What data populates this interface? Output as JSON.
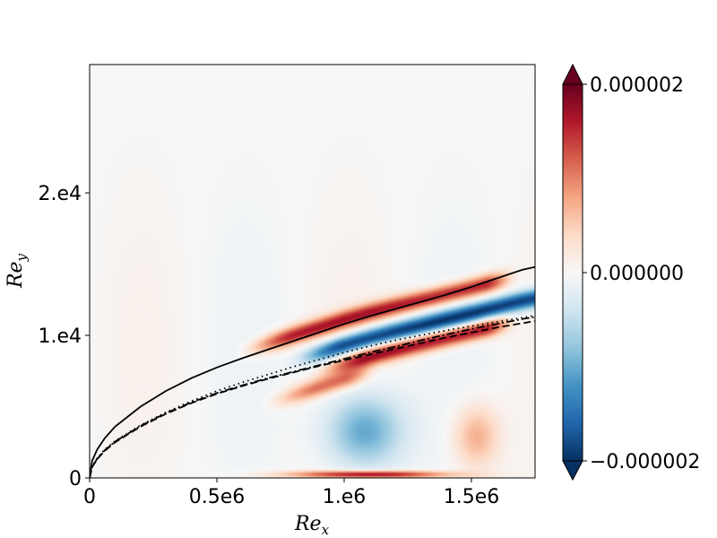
{
  "chart_data": {
    "type": "heatmap",
    "xlabel": "Re",
    "xlabel_sub": "x",
    "ylabel": "Re",
    "ylabel_sub": "y",
    "xlim": [
      0,
      1750000
    ],
    "ylim": [
      0,
      29000
    ],
    "x_ticks": [
      {
        "value": 0,
        "label": "0"
      },
      {
        "value": 500000,
        "label": "0.5e6"
      },
      {
        "value": 1000000,
        "label": "1.e6"
      },
      {
        "value": 1500000,
        "label": "1.5e6"
      }
    ],
    "y_ticks": [
      {
        "value": 0,
        "label": "0"
      },
      {
        "value": 10000,
        "label": "1.e4"
      },
      {
        "value": 20000,
        "label": "2.e4"
      }
    ],
    "colorbar": {
      "min": -2e-06,
      "max": 2e-06,
      "colormap": "RdBu_r",
      "colors": [
        "#053061",
        "#2166ac",
        "#4393c3",
        "#92c5de",
        "#d1e5f0",
        "#f7f7f7",
        "#fddbc7",
        "#f4a582",
        "#d6604d",
        "#b2182b",
        "#67001f"
      ],
      "ticks": [
        {
          "value": 2e-06,
          "label": "0.000002"
        },
        {
          "value": 0,
          "label": "0.000000"
        },
        {
          "value": -2e-06,
          "label": "−0.000002"
        }
      ]
    },
    "field_features": [
      {
        "kind": "band",
        "sign": "positive",
        "x_range": [
          700000,
          1550000
        ],
        "y_offset": 1300,
        "strength": 0.8
      },
      {
        "kind": "band",
        "sign": "negative",
        "x_range": [
          900000,
          1750000
        ],
        "y_offset": -500,
        "strength": 0.95
      },
      {
        "kind": "band",
        "sign": "positive",
        "x_range": [
          1000000,
          1550000
        ],
        "y_offset": -1800,
        "strength": 0.85
      },
      {
        "kind": "band",
        "sign": "positive",
        "x_range": [
          800000,
          1000000
        ],
        "y_offset": -2900,
        "strength": 0.55
      },
      {
        "kind": "blob",
        "sign": "negative",
        "center": [
          1080000,
          3300
        ],
        "spread": [
          150000,
          2600
        ],
        "strength": 0.55
      },
      {
        "kind": "blob",
        "sign": "positive",
        "center": [
          1520000,
          2900
        ],
        "spread": [
          90000,
          2200
        ],
        "strength": 0.38
      },
      {
        "kind": "blob",
        "sign": "positive",
        "center": [
          1100000,
          250
        ],
        "spread": [
          300000,
          250
        ],
        "strength": 0.95
      }
    ],
    "curves": [
      {
        "style": "solid",
        "x": [
          0,
          10000,
          30000,
          60000,
          100000,
          200000,
          300000,
          400000,
          500000,
          600000,
          700000,
          800000,
          900000,
          1000000,
          1100000,
          1200000,
          1300000,
          1400000,
          1500000,
          1600000,
          1700000,
          1750000
        ],
        "y": [
          0,
          1200,
          2000,
          2800,
          3600,
          5000,
          6100,
          7000,
          7750,
          8400,
          9000,
          9600,
          10200,
          10800,
          11350,
          11850,
          12350,
          12850,
          13400,
          14000,
          14600,
          14800
        ]
      },
      {
        "style": "dotted",
        "x": [
          0,
          10000,
          30000,
          60000,
          100000,
          200000,
          300000,
          400000,
          500000,
          600000,
          700000,
          800000,
          900000,
          1000000,
          1100000,
          1200000,
          1300000,
          1400000,
          1500000,
          1600000,
          1700000,
          1750000
        ],
        "y": [
          0,
          800,
          1400,
          2000,
          2600,
          3700,
          4600,
          5400,
          6100,
          6700,
          7250,
          7800,
          8300,
          8800,
          9250,
          9650,
          10000,
          10350,
          10650,
          10950,
          11250,
          11400
        ]
      },
      {
        "style": "dashdot",
        "x": [
          0,
          10000,
          30000,
          60000,
          100000,
          200000,
          300000,
          400000,
          500000,
          600000,
          700000,
          800000,
          900000,
          1000000,
          1100000,
          1200000,
          1300000,
          1400000,
          1500000,
          1600000,
          1700000,
          1750000
        ],
        "y": [
          0,
          780,
          1350,
          1950,
          2550,
          3650,
          4550,
          5300,
          5950,
          6500,
          7000,
          7450,
          7900,
          8350,
          8800,
          9200,
          9650,
          10050,
          10450,
          10800,
          11150,
          11300
        ]
      },
      {
        "style": "dashed",
        "x": [
          0,
          10000,
          30000,
          60000,
          100000,
          200000,
          300000,
          400000,
          500000,
          600000,
          700000,
          800000,
          900000,
          1000000,
          1100000,
          1200000,
          1300000,
          1400000,
          1500000,
          1600000,
          1700000,
          1750000
        ],
        "y": [
          0,
          760,
          1320,
          1900,
          2500,
          3600,
          4500,
          5250,
          5900,
          6450,
          6950,
          7400,
          7850,
          8250,
          8650,
          9050,
          9450,
          9850,
          10200,
          10550,
          10850,
          11000
        ]
      }
    ]
  }
}
